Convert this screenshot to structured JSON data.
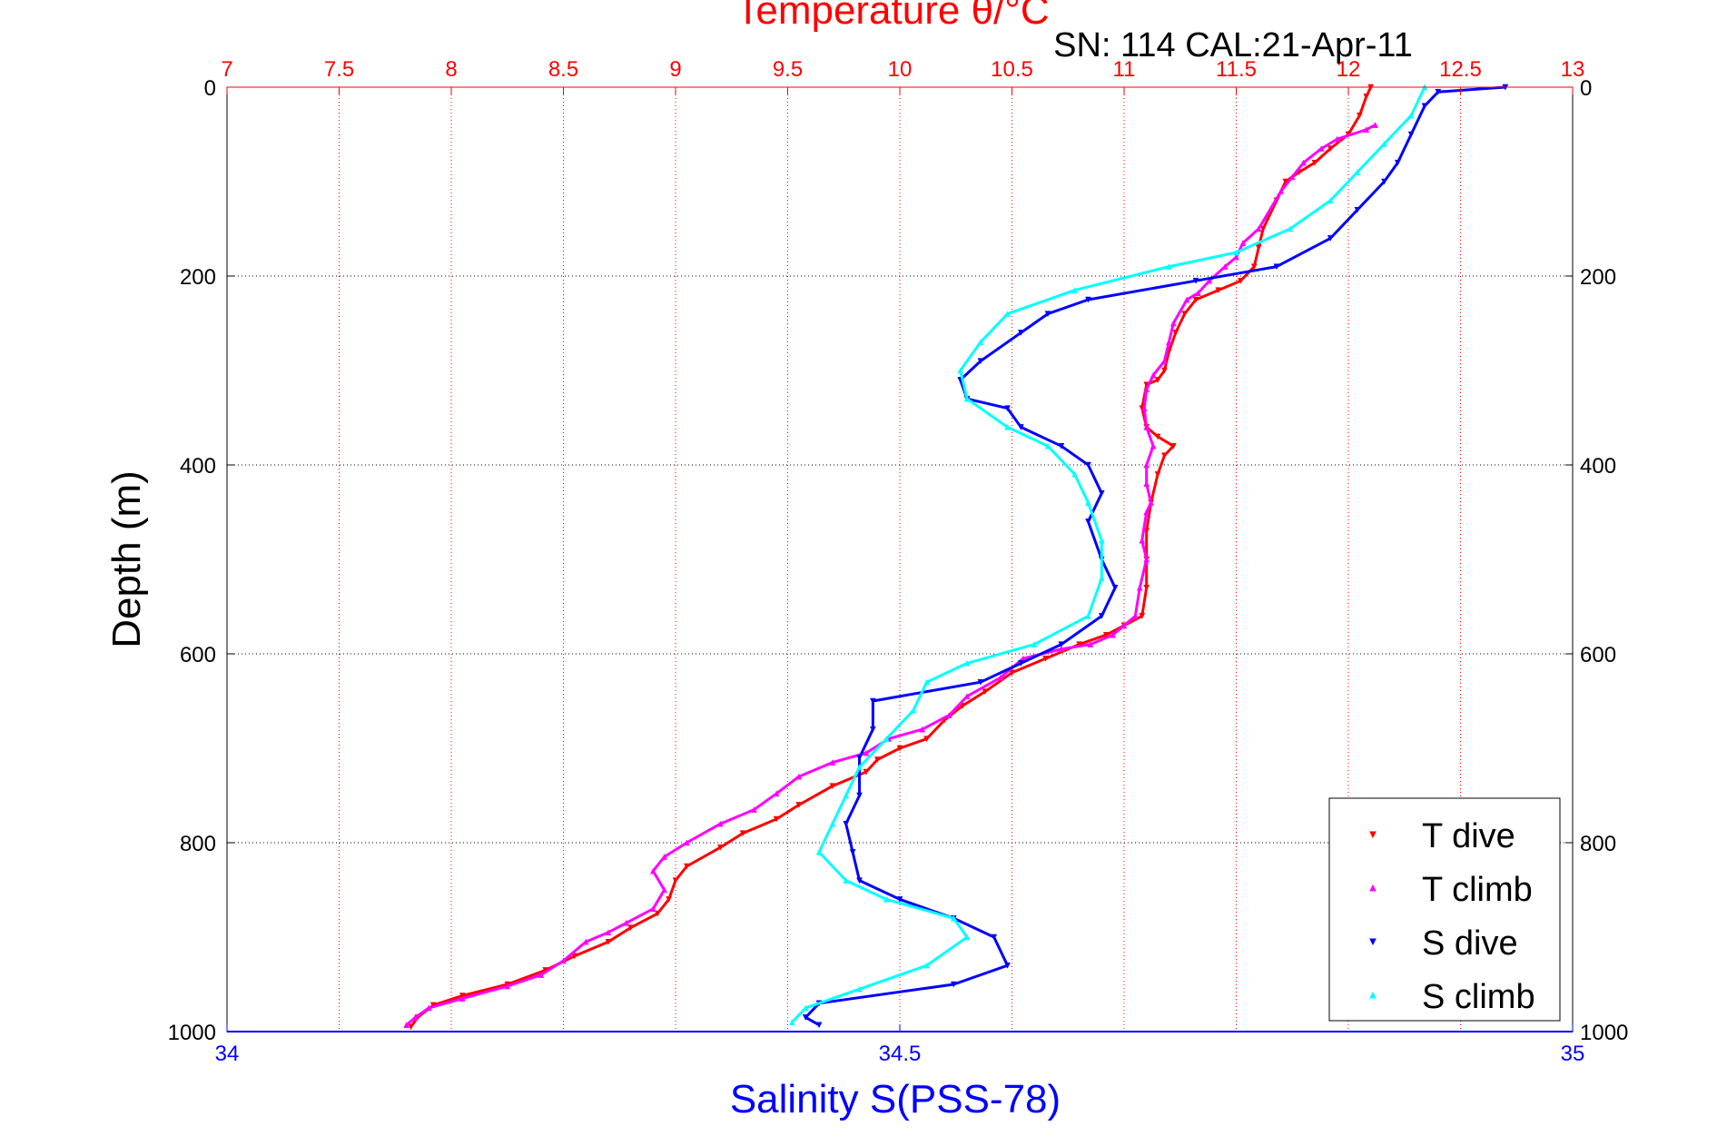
{
  "chart_data": {
    "type": "scatter",
    "title_top": "Temperature θ/°C",
    "subtitle": "SN: 114  CAL:21-Apr-11",
    "ylabel": "Depth (m)",
    "xlabel_bottom": "Salinity S(PSS-78)",
    "temperature_axis": {
      "range": [
        7,
        13
      ],
      "ticks": [
        "7",
        "7.5",
        "8",
        "8.5",
        "9",
        "9.5",
        "10",
        "10.5",
        "11",
        "11.5",
        "12",
        "12.5",
        "13"
      ],
      "color": "#ff0000"
    },
    "salinity_axis": {
      "range": [
        34,
        35
      ],
      "ticks": [
        "34",
        "34.5",
        "35"
      ],
      "color": "#0000ff"
    },
    "depth_axis": {
      "range": [
        0,
        1000
      ],
      "reversed": true,
      "ticks": [
        "0",
        "200",
        "400",
        "600",
        "800",
        "1000"
      ]
    },
    "grid": true,
    "legend_position": "bottom-right",
    "series": [
      {
        "name": "T dive",
        "axis": "temperature",
        "color": "#ff0000",
        "marker": "triangle-down",
        "points": [
          [
            12.1,
            0
          ],
          [
            12.08,
            10
          ],
          [
            12.05,
            30
          ],
          [
            12.0,
            50
          ],
          [
            11.92,
            65
          ],
          [
            11.85,
            80
          ],
          [
            11.78,
            90
          ],
          [
            11.72,
            100
          ],
          [
            11.68,
            120
          ],
          [
            11.62,
            150
          ],
          [
            11.6,
            170
          ],
          [
            11.58,
            190
          ],
          [
            11.52,
            205
          ],
          [
            11.42,
            215
          ],
          [
            11.32,
            225
          ],
          [
            11.27,
            240
          ],
          [
            11.23,
            260
          ],
          [
            11.2,
            280
          ],
          [
            11.18,
            300
          ],
          [
            11.15,
            310
          ],
          [
            11.1,
            315
          ],
          [
            11.08,
            340
          ],
          [
            11.1,
            360
          ],
          [
            11.15,
            370
          ],
          [
            11.22,
            380
          ],
          [
            11.18,
            390
          ],
          [
            11.15,
            410
          ],
          [
            11.12,
            440
          ],
          [
            11.1,
            470
          ],
          [
            11.1,
            500
          ],
          [
            11.1,
            530
          ],
          [
            11.08,
            560
          ],
          [
            11.0,
            570
          ],
          [
            10.92,
            580
          ],
          [
            10.8,
            590
          ],
          [
            10.65,
            605
          ],
          [
            10.5,
            620
          ],
          [
            10.38,
            640
          ],
          [
            10.28,
            655
          ],
          [
            10.2,
            670
          ],
          [
            10.12,
            690
          ],
          [
            10.0,
            700
          ],
          [
            9.9,
            712
          ],
          [
            9.85,
            725
          ],
          [
            9.7,
            740
          ],
          [
            9.55,
            760
          ],
          [
            9.45,
            775
          ],
          [
            9.3,
            790
          ],
          [
            9.2,
            805
          ],
          [
            9.05,
            825
          ],
          [
            9.0,
            840
          ],
          [
            8.97,
            860
          ],
          [
            8.92,
            875
          ],
          [
            8.8,
            890
          ],
          [
            8.7,
            905
          ],
          [
            8.55,
            920
          ],
          [
            8.42,
            935
          ],
          [
            8.25,
            950
          ],
          [
            8.05,
            962
          ],
          [
            7.92,
            972
          ],
          [
            7.85,
            985
          ],
          [
            7.82,
            995
          ]
        ]
      },
      {
        "name": "T climb",
        "axis": "temperature",
        "color": "#ff00ff",
        "marker": "triangle-up",
        "points": [
          [
            12.12,
            40
          ],
          [
            12.08,
            45
          ],
          [
            11.95,
            55
          ],
          [
            11.88,
            65
          ],
          [
            11.8,
            80
          ],
          [
            11.75,
            95
          ],
          [
            11.7,
            110
          ],
          [
            11.6,
            150
          ],
          [
            11.53,
            165
          ],
          [
            11.5,
            180
          ],
          [
            11.45,
            190
          ],
          [
            11.38,
            205
          ],
          [
            11.33,
            218
          ],
          [
            11.28,
            225
          ],
          [
            11.22,
            250
          ],
          [
            11.2,
            270
          ],
          [
            11.18,
            290
          ],
          [
            11.13,
            305
          ],
          [
            11.1,
            320
          ],
          [
            11.09,
            340
          ],
          [
            11.1,
            360
          ],
          [
            11.13,
            380
          ],
          [
            11.1,
            400
          ],
          [
            11.1,
            420
          ],
          [
            11.12,
            440
          ],
          [
            11.1,
            450
          ],
          [
            11.08,
            480
          ],
          [
            11.1,
            500
          ],
          [
            11.07,
            530
          ],
          [
            11.05,
            560
          ],
          [
            11.0,
            570
          ],
          [
            10.95,
            580
          ],
          [
            10.85,
            590
          ],
          [
            10.72,
            595
          ],
          [
            10.55,
            605
          ],
          [
            10.45,
            625
          ],
          [
            10.3,
            645
          ],
          [
            10.22,
            665
          ],
          [
            10.1,
            680
          ],
          [
            9.95,
            690
          ],
          [
            9.85,
            705
          ],
          [
            9.7,
            715
          ],
          [
            9.55,
            730
          ],
          [
            9.45,
            748
          ],
          [
            9.35,
            765
          ],
          [
            9.2,
            780
          ],
          [
            9.05,
            800
          ],
          [
            8.95,
            815
          ],
          [
            8.9,
            830
          ],
          [
            8.95,
            850
          ],
          [
            8.9,
            870
          ],
          [
            8.78,
            885
          ],
          [
            8.7,
            895
          ],
          [
            8.6,
            905
          ],
          [
            8.5,
            925
          ],
          [
            8.4,
            940
          ],
          [
            8.25,
            952
          ],
          [
            8.05,
            965
          ],
          [
            7.9,
            975
          ],
          [
            7.84,
            985
          ],
          [
            7.8,
            993
          ]
        ]
      },
      {
        "name": "S dive",
        "axis": "salinity",
        "color": "#0000ff",
        "marker": "triangle-down",
        "points": [
          [
            34.95,
            0
          ],
          [
            34.9,
            5
          ],
          [
            34.89,
            20
          ],
          [
            34.88,
            50
          ],
          [
            34.87,
            80
          ],
          [
            34.86,
            100
          ],
          [
            34.84,
            130
          ],
          [
            34.82,
            160
          ],
          [
            34.78,
            190
          ],
          [
            34.72,
            205
          ],
          [
            34.64,
            225
          ],
          [
            34.61,
            240
          ],
          [
            34.59,
            260
          ],
          [
            34.56,
            290
          ],
          [
            34.545,
            310
          ],
          [
            34.55,
            330
          ],
          [
            34.58,
            340
          ],
          [
            34.59,
            360
          ],
          [
            34.62,
            380
          ],
          [
            34.64,
            400
          ],
          [
            34.65,
            430
          ],
          [
            34.64,
            460
          ],
          [
            34.65,
            500
          ],
          [
            34.66,
            530
          ],
          [
            34.65,
            560
          ],
          [
            34.62,
            590
          ],
          [
            34.59,
            610
          ],
          [
            34.56,
            630
          ],
          [
            34.48,
            650
          ],
          [
            34.48,
            680
          ],
          [
            34.47,
            710
          ],
          [
            34.47,
            750
          ],
          [
            34.46,
            780
          ],
          [
            34.465,
            810
          ],
          [
            34.47,
            840
          ],
          [
            34.5,
            860
          ],
          [
            34.54,
            880
          ],
          [
            34.57,
            900
          ],
          [
            34.58,
            930
          ],
          [
            34.54,
            950
          ],
          [
            34.44,
            970
          ],
          [
            34.43,
            985
          ],
          [
            34.44,
            993
          ]
        ]
      },
      {
        "name": "S climb",
        "axis": "salinity",
        "color": "#00ffff",
        "marker": "triangle-up",
        "points": [
          [
            34.89,
            0
          ],
          [
            34.88,
            30
          ],
          [
            34.86,
            60
          ],
          [
            34.84,
            90
          ],
          [
            34.82,
            120
          ],
          [
            34.79,
            150
          ],
          [
            34.75,
            175
          ],
          [
            34.7,
            190
          ],
          [
            34.63,
            215
          ],
          [
            34.58,
            240
          ],
          [
            34.56,
            270
          ],
          [
            34.545,
            300
          ],
          [
            34.55,
            330
          ],
          [
            34.58,
            360
          ],
          [
            34.61,
            380
          ],
          [
            34.63,
            410
          ],
          [
            34.64,
            440
          ],
          [
            34.65,
            480
          ],
          [
            34.65,
            520
          ],
          [
            34.64,
            560
          ],
          [
            34.6,
            590
          ],
          [
            34.55,
            610
          ],
          [
            34.52,
            630
          ],
          [
            34.51,
            660
          ],
          [
            34.49,
            690
          ],
          [
            34.47,
            720
          ],
          [
            34.46,
            750
          ],
          [
            34.45,
            780
          ],
          [
            34.44,
            810
          ],
          [
            34.46,
            840
          ],
          [
            34.49,
            860
          ],
          [
            34.54,
            880
          ],
          [
            34.55,
            900
          ],
          [
            34.52,
            930
          ],
          [
            34.47,
            955
          ],
          [
            34.43,
            975
          ],
          [
            34.42,
            990
          ]
        ]
      }
    ]
  }
}
